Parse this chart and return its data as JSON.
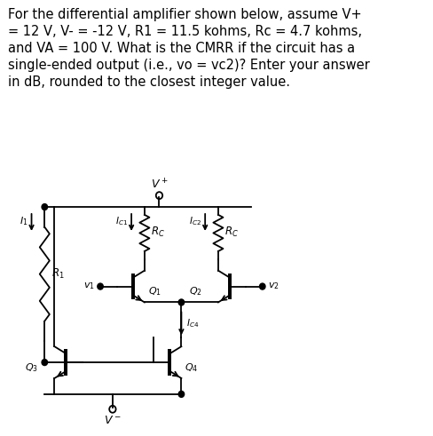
{
  "text_block": "For the differential amplifier shown below, assume V+\n= 12 V, V- = -12 V, R1 = 11.5 kohms, Rc = 4.7 kohms,\nand VA = 100 V. What is the CMRR if the circuit has a\nsingle-ended output (i.e., vo = vc2)? Enter your answer\nin dB, rounded to the closest integer value.",
  "bg_color": "#ffffff",
  "text_color": "#000000",
  "font_size": 10.5,
  "fig_w": 4.89,
  "fig_h": 4.91,
  "dpi": 100
}
